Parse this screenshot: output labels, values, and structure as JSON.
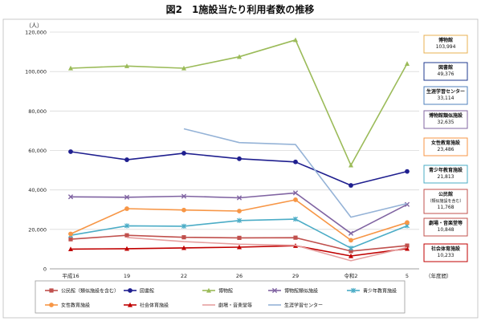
{
  "chart_data": {
    "type": "line",
    "title": "図2　1施設当たり利用者数の推移",
    "ylabel": "（人）",
    "xlabel": "（年度間）",
    "categories": [
      "平成16",
      "19",
      "22",
      "26",
      "29",
      "令和2",
      "5"
    ],
    "ylim": [
      0,
      120000
    ],
    "yticks": [
      "0",
      "20,000",
      "40,000",
      "60,000",
      "80,000",
      "100,000",
      "120,000"
    ],
    "grid": true,
    "legend_position": "bottom",
    "series": [
      {
        "name": "公民館（類似施設を含む）",
        "color": "#c0504d",
        "marker": "square",
        "values": [
          15000,
          17000,
          16000,
          15700,
          15800,
          9000,
          11768
        ]
      },
      {
        "name": "図書館",
        "color": "#1f1f8f",
        "marker": "circle",
        "values": [
          59400,
          55300,
          58600,
          55800,
          54200,
          42300,
          49376
        ]
      },
      {
        "name": "博物館",
        "color": "#9bbb59",
        "marker": "triangle",
        "values": [
          101700,
          102800,
          101700,
          107500,
          116000,
          52500,
          103994
        ]
      },
      {
        "name": "博物館類似施設",
        "color": "#8064a2",
        "marker": "x",
        "values": [
          36500,
          36300,
          36800,
          36000,
          38500,
          18000,
          32635
        ]
      },
      {
        "name": "青少年教育施設",
        "color": "#4bacc6",
        "marker": "star",
        "values": [
          17000,
          21800,
          21600,
          24500,
          25200,
          10500,
          21813
        ]
      },
      {
        "name": "女性教育施設",
        "color": "#f79646",
        "marker": "circle",
        "values": [
          17700,
          30500,
          29800,
          29300,
          35000,
          14500,
          23486
        ]
      },
      {
        "name": "社会体育施設",
        "color": "#c00000",
        "marker": "triangle",
        "values": [
          10000,
          10200,
          10600,
          11000,
          11700,
          6500,
          10233
        ]
      },
      {
        "name": "劇場・音楽堂等",
        "color": "#e6a0a0",
        "marker": "none",
        "values": [
          null,
          15900,
          13800,
          12500,
          11900,
          4100,
          10848
        ]
      },
      {
        "name": "生涯学習センター",
        "color": "#95b3d7",
        "marker": "none",
        "values": [
          null,
          null,
          71000,
          64000,
          63000,
          26200,
          33114
        ]
      }
    ],
    "callouts": [
      {
        "label": "博物館",
        "value": "103,994",
        "color": "#e8b050"
      },
      {
        "label": "図書館",
        "value": "49,376",
        "color": "#1f3a8f"
      },
      {
        "label": "生涯学習センター",
        "value": "33,114",
        "color": "#4f81bd"
      },
      {
        "label": "博物館類似施設",
        "value": "32,635",
        "color": "#8064a2"
      },
      {
        "label": "女性教育施設",
        "value": "23,486",
        "color": "#f79646"
      },
      {
        "label": "青少年教育施設",
        "value": "21,813",
        "color": "#4bacc6"
      },
      {
        "label": "公民館\n（類似施設を含む）",
        "value": "11,768",
        "color": "#c0504d"
      },
      {
        "label": "劇場・音楽堂等",
        "value": "10,848",
        "color": "#c0504d"
      },
      {
        "label": "社会体育施設",
        "value": "10,233",
        "color": "#c00000"
      }
    ]
  }
}
